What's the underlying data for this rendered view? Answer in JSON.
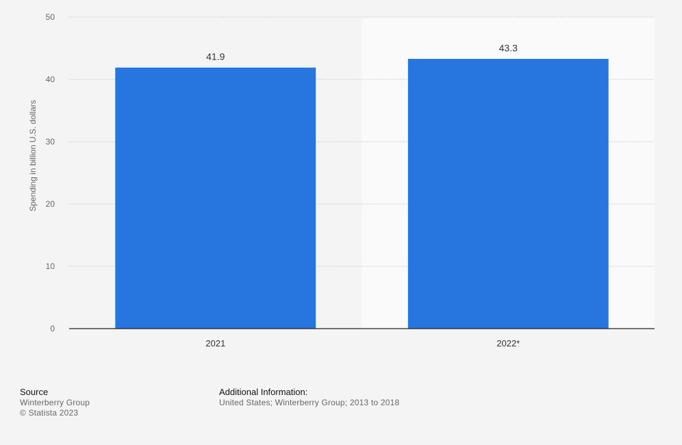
{
  "chart_data": {
    "type": "bar",
    "categories": [
      "2021",
      "2022*"
    ],
    "values": [
      41.9,
      43.3
    ],
    "value_labels": [
      "41.9",
      "43.3"
    ],
    "title": "",
    "xlabel": "",
    "ylabel": "Spending in billion U.S. dollars",
    "ylim": [
      0,
      50
    ],
    "yticks": [
      0,
      10,
      20,
      30,
      40,
      50
    ],
    "ytick_labels": [
      "0",
      "10",
      "20",
      "30",
      "40",
      "50"
    ],
    "grid": true,
    "legend": "none",
    "bar_color": "#2775de",
    "forecast_band_color": "#fafafa"
  },
  "footer": {
    "source_heading": "Source",
    "source_name": "Winterberry Group",
    "copyright": "© Statista 2023",
    "info_heading": "Additional Information:",
    "info_text": "United States; Winterberry Group; 2013 to 2018"
  }
}
